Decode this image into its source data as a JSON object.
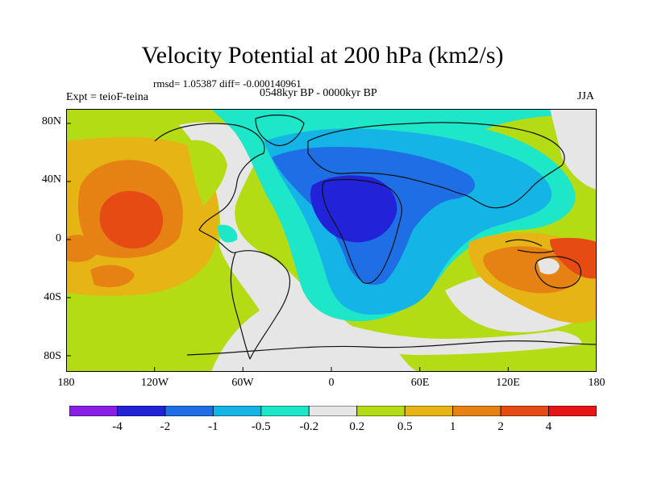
{
  "figure": {
    "title": "Velocity Potential at 200 hPa (km2/s)",
    "stats": "rmsd= 1.05387 diff= -0.000140961",
    "period": "0548kyr BP - 0000kyr BP",
    "experiment": "Expt = teioF-teina",
    "season": "JJA"
  },
  "axes": {
    "y_ticks": [
      "80N",
      "40N",
      "0",
      "40S",
      "80S"
    ],
    "x_ticks": [
      "180",
      "120W",
      "60W",
      "0",
      "60E",
      "120E",
      "180"
    ]
  },
  "colorbar": {
    "labels": [
      "-4",
      "-2",
      "-1",
      "-0.5",
      "-0.2",
      "0.2",
      "0.5",
      "1",
      "2",
      "4"
    ],
    "colors": [
      "#8a1ee6",
      "#2222d8",
      "#1e6ee6",
      "#14b4e6",
      "#1ee6c8",
      "#e6e6e6",
      "#b4dc14",
      "#e6b414",
      "#e68214",
      "#e64b14",
      "#e61414"
    ]
  }
}
